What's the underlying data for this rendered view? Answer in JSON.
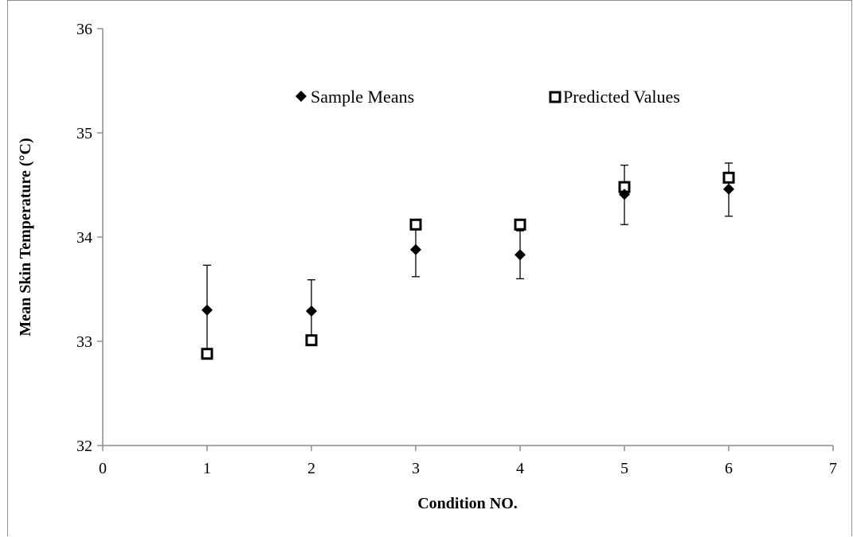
{
  "chart_data": {
    "type": "scatter",
    "title": "",
    "xlabel": "Condition NO.",
    "ylabel": "Mean Skin Temperature (°C)",
    "xlim": [
      0,
      7
    ],
    "ylim": [
      32,
      36
    ],
    "x_ticks": [
      0,
      1,
      2,
      3,
      4,
      5,
      6,
      7
    ],
    "y_ticks": [
      32,
      33,
      34,
      35,
      36
    ],
    "grid": false,
    "legend_placement": "top-center",
    "series": [
      {
        "name": "Sample Means",
        "marker": "filled-diamond",
        "color": "#000000",
        "x": [
          1,
          2,
          3,
          4,
          5,
          6
        ],
        "y": [
          33.3,
          33.29,
          33.88,
          33.83,
          34.41,
          34.46
        ],
        "error_upper": [
          0.43,
          0.3,
          0.25,
          0.23,
          0.28,
          0.25
        ],
        "error_lower": [
          0.43,
          0.3,
          0.26,
          0.23,
          0.29,
          0.26
        ]
      },
      {
        "name": "Predicted Values",
        "marker": "open-square",
        "color": "#000000",
        "x": [
          1,
          2,
          3,
          4,
          5,
          6
        ],
        "y": [
          32.88,
          33.01,
          34.12,
          34.12,
          34.48,
          34.57
        ]
      }
    ]
  }
}
